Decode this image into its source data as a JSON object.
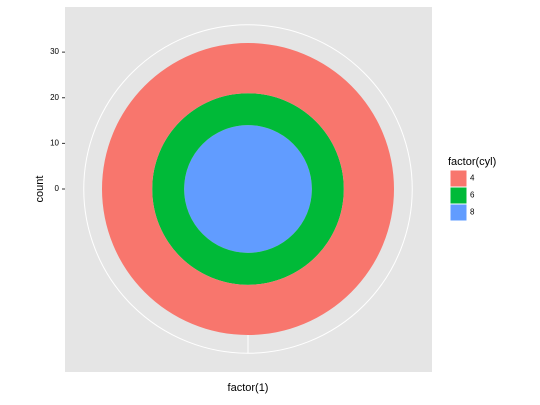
{
  "chart_data": {
    "type": "polar-stacked-bar",
    "x_label": "factor(1)",
    "y_label": "count",
    "legend_title": "factor(cyl)",
    "series": [
      {
        "name": "4",
        "color": "#f8766d",
        "values": [
          11
        ]
      },
      {
        "name": "6",
        "color": "#00ba38",
        "values": [
          7
        ]
      },
      {
        "name": "8",
        "color": "#619cff",
        "values": [
          14
        ]
      }
    ],
    "ylim": [
      0,
      32
    ],
    "yticks": [
      0,
      10,
      20,
      30
    ],
    "grid": true,
    "legend_position": "right"
  }
}
